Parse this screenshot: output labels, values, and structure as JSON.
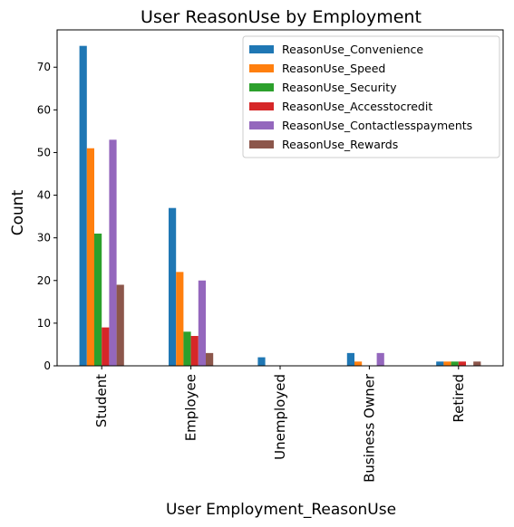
{
  "chart_data": {
    "type": "bar",
    "title": "User ReasonUse by Employment",
    "xlabel": "User Employment_ReasonUse",
    "ylabel": "Count",
    "ylim": [
      0,
      78.75
    ],
    "yticks": [
      0,
      10,
      20,
      30,
      40,
      50,
      60,
      70
    ],
    "categories": [
      "Student",
      "Employee",
      "Unemployed",
      "Business Owner",
      "Retired"
    ],
    "legend_position": "top-right",
    "grid": false,
    "series": [
      {
        "name": "ReasonUse_Convenience",
        "color": "#1f77b4",
        "values": [
          75,
          37,
          2,
          3,
          1
        ]
      },
      {
        "name": "ReasonUse_Speed",
        "color": "#ff7f0e",
        "values": [
          51,
          22,
          0,
          1,
          1
        ]
      },
      {
        "name": "ReasonUse_Security",
        "color": "#2ca02c",
        "values": [
          31,
          8,
          0,
          0,
          1
        ]
      },
      {
        "name": "ReasonUse_Accesstocredit",
        "color": "#d62728",
        "values": [
          9,
          7,
          0,
          0,
          1
        ]
      },
      {
        "name": "ReasonUse_Contactlesspayments",
        "color": "#9467bd",
        "values": [
          53,
          20,
          0,
          3,
          0
        ]
      },
      {
        "name": "ReasonUse_Rewards",
        "color": "#8c564b",
        "values": [
          19,
          3,
          0,
          0,
          1
        ]
      }
    ]
  }
}
